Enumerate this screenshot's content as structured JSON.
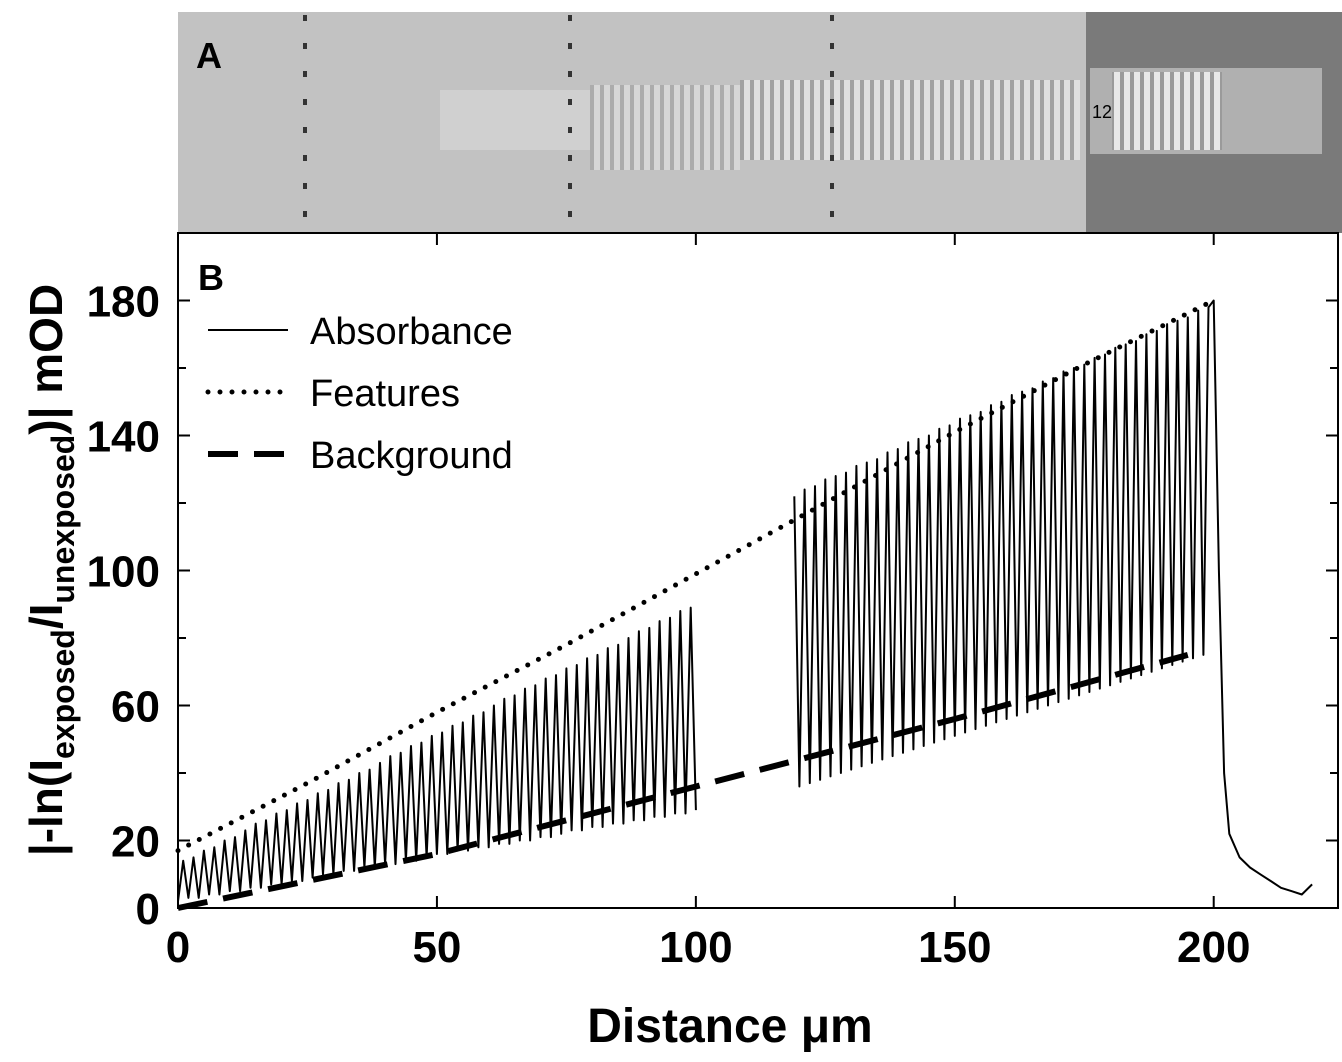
{
  "chart_data": {
    "type": "line",
    "panel_a_label": "A",
    "panel_b_label": "B",
    "image_text": "12",
    "xlabel": "Distance  μm",
    "ylabel_parts": [
      "|-ln(I",
      "exposed",
      "/I",
      "unexposed",
      ")|  mOD"
    ],
    "xlim": [
      0,
      224
    ],
    "ylim": [
      0,
      200
    ],
    "xticks": [
      0,
      50,
      100,
      150,
      200
    ],
    "yticks": [
      0,
      20,
      60,
      100,
      140,
      180
    ],
    "yminor_ticks": [
      40,
      80,
      120,
      160,
      200
    ],
    "legend": "upper left",
    "series": [
      {
        "name": "Absorbance",
        "style": "solid",
        "color": "#000000",
        "x": [
          0,
          1,
          2,
          3,
          4,
          5,
          6,
          7,
          8,
          9,
          10,
          11,
          12,
          13,
          14,
          15,
          16,
          17,
          18,
          19,
          20,
          21,
          22,
          23,
          24,
          25,
          26,
          27,
          28,
          29,
          30,
          31,
          32,
          33,
          34,
          35,
          36,
          37,
          38,
          39,
          40,
          41,
          42,
          43,
          44,
          45,
          46,
          47,
          48,
          49,
          50,
          51,
          52,
          53,
          54,
          55,
          56,
          57,
          58,
          59,
          60,
          61,
          62,
          63,
          64,
          65,
          66,
          67,
          68,
          69,
          70,
          71,
          72,
          73,
          74,
          75,
          76,
          77,
          78,
          79,
          80,
          81,
          82,
          83,
          84,
          85,
          86,
          87,
          88,
          89,
          90,
          91,
          92,
          93,
          94,
          95,
          96,
          97,
          98,
          99,
          100,
          110,
          119,
          120,
          121,
          122,
          123,
          124,
          125,
          126,
          127,
          128,
          129,
          130,
          131,
          132,
          133,
          134,
          135,
          136,
          137,
          138,
          139,
          140,
          141,
          142,
          143,
          144,
          145,
          146,
          147,
          148,
          149,
          150,
          151,
          152,
          153,
          154,
          155,
          156,
          157,
          158,
          159,
          160,
          161,
          162,
          163,
          164,
          165,
          166,
          167,
          168,
          169,
          170,
          171,
          172,
          173,
          174,
          175,
          176,
          177,
          178,
          179,
          180,
          181,
          182,
          183,
          184,
          185,
          186,
          187,
          188,
          189,
          190,
          191,
          192,
          193,
          194,
          195,
          196,
          197,
          198,
          199,
          200,
          201,
          202,
          203,
          205,
          207,
          209,
          211,
          213,
          215,
          217,
          219
        ],
        "values": [
          2,
          14,
          3,
          15,
          3,
          17,
          4,
          18,
          4,
          20,
          5,
          21,
          5,
          23,
          6,
          25,
          6,
          26,
          7,
          28,
          7,
          29,
          8,
          31,
          8,
          32,
          9,
          34,
          10,
          35,
          10,
          37,
          11,
          38,
          11,
          40,
          12,
          41,
          12,
          43,
          13,
          45,
          13,
          46,
          14,
          48,
          14,
          49,
          15,
          51,
          16,
          52,
          16,
          54,
          17,
          55,
          17,
          57,
          18,
          58,
          18,
          60,
          19,
          62,
          19,
          63,
          20,
          65,
          20,
          66,
          21,
          68,
          21,
          69,
          22,
          71,
          23,
          72,
          23,
          74,
          24,
          75,
          24,
          77,
          25,
          78,
          25,
          80,
          26,
          82,
          26,
          83,
          27,
          85,
          27,
          86,
          28,
          88,
          28,
          89,
          29,
          null,
          122,
          36,
          124,
          37,
          125,
          38,
          127,
          39,
          128,
          40,
          129,
          41,
          131,
          42,
          132,
          43,
          133,
          44,
          135,
          45,
          136,
          46,
          138,
          47,
          139,
          48,
          140,
          49,
          142,
          50,
          143,
          51,
          145,
          52,
          146,
          53,
          147,
          54,
          149,
          55,
          150,
          56,
          152,
          57,
          153,
          58,
          154,
          59,
          156,
          60,
          157,
          61,
          159,
          62,
          160,
          63,
          161,
          64,
          163,
          65,
          164,
          66,
          166,
          67,
          167,
          68,
          168,
          69,
          170,
          70,
          171,
          71,
          173,
          72,
          174,
          73,
          175,
          74,
          177,
          75,
          178,
          180,
          100,
          40,
          22,
          15,
          12,
          10,
          8,
          6,
          5,
          4,
          7
        ]
      },
      {
        "name": "Features",
        "style": "dotted",
        "color": "#000000",
        "x": [
          0,
          25,
          50,
          75,
          100,
          125,
          150,
          175,
          200
        ],
        "values": [
          17,
          37,
          58,
          78,
          99,
          120,
          141,
          161,
          180
        ]
      },
      {
        "name": "Background",
        "style": "dashed",
        "color": "#000000",
        "x": [
          0,
          50,
          100,
          150,
          195
        ],
        "values": [
          0,
          16,
          36,
          56,
          75
        ]
      }
    ]
  }
}
